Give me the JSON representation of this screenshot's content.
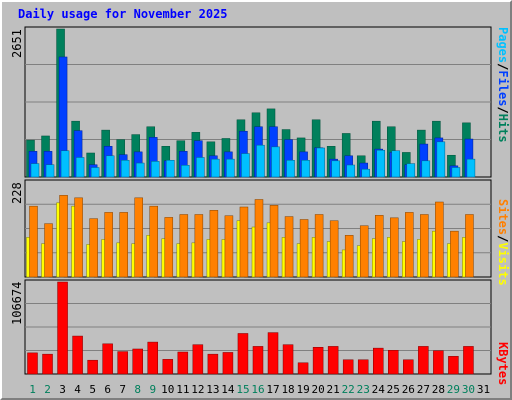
{
  "title": "Daily usage for November 2025",
  "colors": {
    "hits": "#00805c",
    "files": "#0040ff",
    "pages": "#00c0ff",
    "visits": "#ffff00",
    "sites": "#ff8000",
    "kbytes": "#ff0000",
    "weekend": "#00805c",
    "weekday": "#000000"
  },
  "chart_data": [
    {
      "type": "bar",
      "name": "top",
      "ymax_label": "2651",
      "ylim": [
        0,
        2651
      ],
      "legend": [
        "Pages",
        "Files",
        "Hits"
      ],
      "categories": [
        "1",
        "2",
        "3",
        "4",
        "5",
        "6",
        "7",
        "8",
        "9",
        "10",
        "11",
        "12",
        "13",
        "14",
        "15",
        "16",
        "17",
        "18",
        "19",
        "20",
        "21",
        "22",
        "23",
        "24",
        "25",
        "26",
        "27",
        "28",
        "29",
        "30",
        "31"
      ],
      "series": [
        {
          "name": "Hits",
          "values": [
            660,
            735,
            2651,
            1000,
            430,
            840,
            670,
            760,
            900,
            550,
            650,
            800,
            630,
            690,
            1025,
            1150,
            1220,
            850,
            700,
            1025,
            550,
            780,
            380,
            1000,
            900,
            440,
            840,
            1000,
            390,
            970,
            0
          ]
        },
        {
          "name": "Files",
          "values": [
            460,
            460,
            2150,
            830,
            220,
            550,
            400,
            450,
            710,
            290,
            460,
            650,
            380,
            450,
            820,
            900,
            900,
            670,
            450,
            525,
            320,
            380,
            250,
            500,
            440,
            220,
            590,
            700,
            200,
            680,
            0
          ]
        },
        {
          "name": "Pages",
          "values": [
            240,
            220,
            470,
            350,
            170,
            380,
            300,
            250,
            280,
            300,
            210,
            350,
            320,
            320,
            420,
            570,
            540,
            300,
            300,
            520,
            290,
            215,
            140,
            480,
            470,
            240,
            290,
            630,
            170,
            320,
            0
          ]
        }
      ]
    },
    {
      "type": "bar",
      "name": "middle",
      "ymax_label": "228",
      "ylim": [
        0,
        228
      ],
      "legend": [
        "Sites",
        "Visits"
      ],
      "categories": [
        "1",
        "2",
        "3",
        "4",
        "5",
        "6",
        "7",
        "8",
        "9",
        "10",
        "11",
        "12",
        "13",
        "14",
        "15",
        "16",
        "17",
        "18",
        "19",
        "20",
        "21",
        "22",
        "23",
        "24",
        "25",
        "26",
        "27",
        "28",
        "29",
        "30",
        "31"
      ],
      "series": [
        {
          "name": "Visits",
          "values": [
            95,
            80,
            178,
            170,
            78,
            90,
            82,
            80,
            100,
            92,
            80,
            82,
            90,
            90,
            135,
            120,
            130,
            95,
            80,
            95,
            85,
            65,
            75,
            92,
            95,
            85,
            90,
            110,
            80,
            95,
            0
          ]
        },
        {
          "name": "Sites",
          "values": [
            170,
            128,
            196,
            190,
            140,
            155,
            155,
            190,
            170,
            143,
            150,
            150,
            160,
            147,
            168,
            186,
            172,
            145,
            138,
            150,
            135,
            100,
            123,
            148,
            142,
            155,
            150,
            180,
            110,
            150,
            0
          ]
        }
      ]
    },
    {
      "type": "bar",
      "name": "bottom",
      "ymax_label": "106674",
      "ylim": [
        0,
        106674
      ],
      "legend": [
        "KBytes"
      ],
      "categories": [
        "1",
        "2",
        "3",
        "4",
        "5",
        "6",
        "7",
        "8",
        "9",
        "10",
        "11",
        "12",
        "13",
        "14",
        "15",
        "16",
        "17",
        "18",
        "19",
        "20",
        "21",
        "22",
        "23",
        "24",
        "25",
        "26",
        "27",
        "28",
        "29",
        "30",
        "31"
      ],
      "series": [
        {
          "name": "KBytes",
          "values": [
            24500,
            23000,
            106674,
            44000,
            16000,
            35000,
            26000,
            29000,
            37000,
            17000,
            25500,
            34000,
            23000,
            25000,
            47000,
            32000,
            48000,
            34000,
            13000,
            31000,
            32000,
            16500,
            16500,
            30000,
            27500,
            16500,
            32000,
            27000,
            20500,
            32000,
            0
          ]
        }
      ]
    }
  ]
}
